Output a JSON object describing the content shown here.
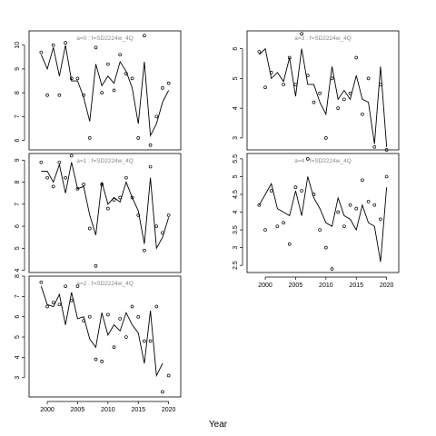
{
  "chart_data": [
    {
      "type": "line",
      "title": "a=0 : f=SD2224w_4Q",
      "xlim": [
        1997,
        2022
      ],
      "ylim": [
        5.6,
        10.6
      ],
      "x_ticks": [
        2000,
        2005,
        2010,
        2015,
        2020
      ],
      "y_ticks": [
        6,
        7,
        8,
        9,
        10
      ],
      "x_tick_labels_shown": false,
      "x": [
        1999,
        2000,
        2001,
        2002,
        2003,
        2004,
        2005,
        2006,
        2007,
        2008,
        2009,
        2010,
        2011,
        2012,
        2013,
        2014,
        2015,
        2016,
        2017,
        2018,
        2019,
        2020
      ],
      "series": [
        {
          "kind": "line",
          "values": [
            9.6,
            9.0,
            9.9,
            8.7,
            10.0,
            8.5,
            8.5,
            7.8,
            6.8,
            9.2,
            8.3,
            8.7,
            8.4,
            9.3,
            8.9,
            8.2,
            6.7,
            9.3,
            6.2,
            6.7,
            7.6,
            8.1
          ]
        },
        {
          "kind": "points",
          "values": [
            9.7,
            7.9,
            10.0,
            7.9,
            10.1,
            8.6,
            8.6,
            7.9,
            6.1,
            9.9,
            8.0,
            9.2,
            8.1,
            9.6,
            8.8,
            8.6,
            6.1,
            10.4,
            5.8,
            7.0,
            8.2,
            8.4
          ]
        }
      ]
    },
    {
      "type": "line",
      "title": "a=3 : f=SD2224w_4Q",
      "xlim": [
        1997,
        2022
      ],
      "ylim": [
        2.6,
        6.6
      ],
      "x_ticks": [
        2000,
        2005,
        2010,
        2015,
        2020
      ],
      "y_ticks": [
        3,
        4,
        5,
        6
      ],
      "x_tick_labels_shown": false,
      "x": [
        1999,
        2000,
        2001,
        2002,
        2003,
        2004,
        2005,
        2006,
        2007,
        2008,
        2009,
        2010,
        2011,
        2012,
        2013,
        2014,
        2015,
        2016,
        2017,
        2018,
        2019,
        2020
      ],
      "series": [
        {
          "kind": "line",
          "values": [
            5.8,
            6.0,
            5.0,
            5.2,
            4.9,
            5.7,
            4.4,
            6.0,
            4.8,
            4.8,
            4.2,
            3.8,
            5.4,
            4.3,
            4.6,
            4.3,
            5.1,
            4.3,
            4.2,
            2.8,
            5.4,
            2.7
          ]
        },
        {
          "kind": "points",
          "values": [
            5.9,
            4.7,
            5.2,
            null,
            4.8,
            5.7,
            4.8,
            6.5,
            5.1,
            4.2,
            4.5,
            3.0,
            5.0,
            4.0,
            4.3,
            4.5,
            5.7,
            3.8,
            5.0,
            2.7,
            4.8,
            2.6
          ]
        }
      ]
    },
    {
      "type": "line",
      "title": "a=1 : f=SD2224w_4Q",
      "xlim": [
        1997,
        2022
      ],
      "ylim": [
        3.9,
        9.3
      ],
      "x_ticks": [
        2000,
        2005,
        2010,
        2015,
        2020
      ],
      "y_ticks": [
        4,
        5,
        6,
        7,
        8,
        9
      ],
      "x_tick_labels_shown": false,
      "x": [
        1999,
        2000,
        2001,
        2002,
        2003,
        2004,
        2005,
        2006,
        2007,
        2008,
        2009,
        2010,
        2011,
        2012,
        2013,
        2014,
        2015,
        2016,
        2017,
        2018,
        2019,
        2020
      ],
      "series": [
        {
          "kind": "line",
          "values": [
            8.5,
            8.5,
            8.0,
            8.8,
            7.5,
            8.9,
            7.7,
            7.8,
            6.5,
            5.6,
            8.0,
            7.0,
            7.3,
            7.1,
            8.0,
            7.3,
            6.7,
            5.2,
            8.2,
            5.0,
            5.5,
            6.4
          ]
        },
        {
          "kind": "points",
          "values": [
            8.9,
            8.2,
            7.8,
            8.9,
            8.2,
            9.2,
            7.7,
            7.9,
            5.9,
            4.2,
            7.9,
            6.8,
            7.2,
            7.3,
            8.2,
            7.3,
            6.5,
            4.9,
            8.7,
            6.0,
            5.7,
            6.5
          ]
        }
      ]
    },
    {
      "type": "line",
      "title": "a=4 : f=SD2224w_4Q",
      "xlim": [
        1997,
        2022
      ],
      "ylim": [
        2.3,
        5.65
      ],
      "x_ticks": [
        2000,
        2005,
        2010,
        2015,
        2020
      ],
      "y_ticks": [
        2.5,
        3.0,
        3.5,
        4.0,
        4.5,
        5.0,
        5.5
      ],
      "x_tick_labels_shown": true,
      "x": [
        1999,
        2000,
        2001,
        2002,
        2003,
        2004,
        2005,
        2006,
        2007,
        2008,
        2009,
        2010,
        2011,
        2012,
        2013,
        2014,
        2015,
        2016,
        2017,
        2018,
        2019,
        2020
      ],
      "series": [
        {
          "kind": "line",
          "values": [
            4.2,
            4.5,
            4.8,
            4.1,
            4.0,
            3.9,
            4.6,
            3.9,
            5.0,
            4.4,
            4.1,
            3.7,
            3.6,
            4.4,
            3.9,
            3.8,
            3.5,
            4.2,
            3.7,
            3.6,
            2.6,
            4.7
          ]
        },
        {
          "kind": "points",
          "values": [
            4.2,
            3.5,
            4.6,
            3.6,
            3.7,
            3.1,
            4.7,
            4.6,
            5.5,
            4.5,
            3.5,
            3.0,
            2.4,
            4.0,
            3.6,
            4.2,
            4.1,
            4.9,
            4.3,
            4.2,
            3.8,
            5.0
          ]
        }
      ]
    },
    {
      "type": "line",
      "title": "a=2 : f=SD2224w_4Q",
      "xlim": [
        1997,
        2022
      ],
      "ylim": [
        2.05,
        8.0
      ],
      "x_ticks": [
        2000,
        2005,
        2010,
        2015,
        2020
      ],
      "y_ticks": [
        3,
        4,
        5,
        6,
        7,
        8
      ],
      "x_tick_labels_shown": true,
      "x": [
        1999,
        2000,
        2001,
        2002,
        2003,
        2004,
        2005,
        2006,
        2007,
        2008,
        2009,
        2010,
        2011,
        2012,
        2013,
        2014,
        2015,
        2016,
        2017,
        2018,
        2019,
        2020
      ],
      "series": [
        {
          "kind": "line",
          "values": [
            7.5,
            6.6,
            6.5,
            7.1,
            5.6,
            7.2,
            5.9,
            6.0,
            4.9,
            4.5,
            6.2,
            5.1,
            5.6,
            5.3,
            6.2,
            5.6,
            5.2,
            3.7,
            6.3,
            3.1,
            3.7,
            null
          ]
        },
        {
          "kind": "points",
          "values": [
            7.7,
            6.5,
            6.7,
            6.6,
            7.5,
            6.8,
            7.5,
            5.8,
            6.0,
            3.9,
            3.8,
            6.1,
            4.5,
            5.9,
            5.0,
            6.5,
            6.0,
            4.8,
            4.8,
            6.5,
            2.3,
            3.1
          ]
        }
      ]
    }
  ],
  "xlabel": "Year"
}
